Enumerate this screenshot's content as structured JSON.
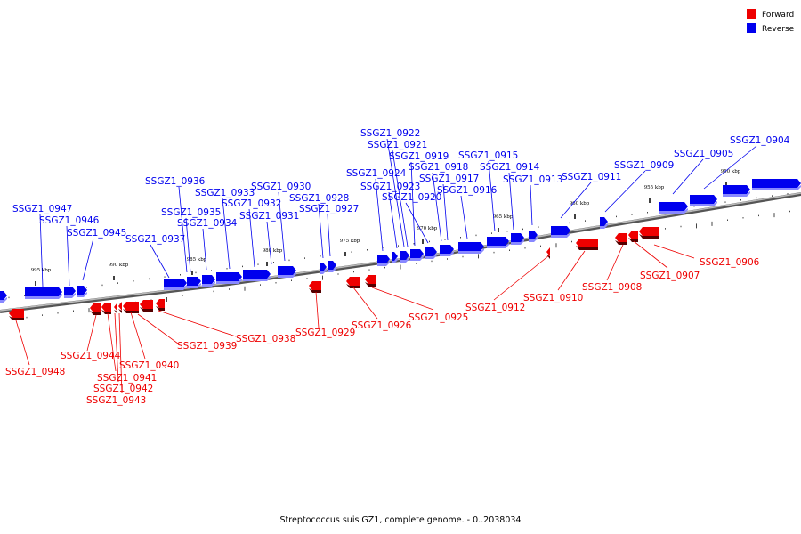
{
  "caption": "Streptococcus suis GZ1, complete genome. - 0..2038034",
  "legend": [
    {
      "label": "Forward",
      "color": "#ee0000"
    },
    {
      "label": "Reverse",
      "color": "#0000ee"
    }
  ],
  "colors": {
    "forward": "#ee0000",
    "reverse": "#0000ee",
    "backbone": "#777777"
  },
  "ticks": [
    "995 kbp",
    "990 kbp",
    "985 kbp",
    "980 kbp",
    "975 kbp",
    "970 kbp",
    "965 kbp",
    "960 kbp",
    "955 kbp",
    "950 kbp"
  ],
  "reverse_genes": [
    "SSGZ1_0947",
    "SSGZ1_0946",
    "SSGZ1_0945",
    "SSGZ1_0937",
    "SSGZ1_0936",
    "SSGZ1_0935",
    "SSGZ1_0934",
    "SSGZ1_0933",
    "SSGZ1_0932",
    "SSGZ1_0931",
    "SSGZ1_0930",
    "SSGZ1_0928",
    "SSGZ1_0927",
    "SSGZ1_0924",
    "SSGZ1_0923",
    "SSGZ1_0922",
    "SSGZ1_0921",
    "SSGZ1_0919",
    "SSGZ1_0920",
    "SSGZ1_0918",
    "SSGZ1_0917",
    "SSGZ1_0916",
    "SSGZ1_0915",
    "SSGZ1_0914",
    "SSGZ1_0913",
    "SSGZ1_0911",
    "SSGZ1_0909",
    "SSGZ1_0905",
    "SSGZ1_0904"
  ],
  "forward_genes": [
    "SSGZ1_0948",
    "SSGZ1_0944",
    "SSGZ1_0941",
    "SSGZ1_0942",
    "SSGZ1_0943",
    "SSGZ1_0940",
    "SSGZ1_0939",
    "SSGZ1_0938",
    "SSGZ1_0929",
    "SSGZ1_0926",
    "SSGZ1_0925",
    "SSGZ1_0912",
    "SSGZ1_0910",
    "SSGZ1_0908",
    "SSGZ1_0907",
    "SSGZ1_0906"
  ]
}
